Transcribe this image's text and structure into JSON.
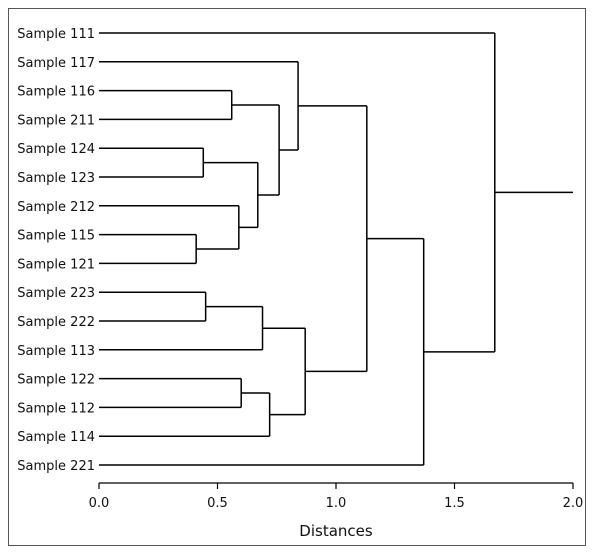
{
  "chart_data": {
    "type": "dendrogram",
    "xlabel": "Distances",
    "xlim": [
      0.0,
      2.0
    ],
    "xticks": [
      "0.0",
      "0.5",
      "1.0",
      "1.5",
      "2.0"
    ],
    "leaves": [
      "Sample 111",
      "Sample 117",
      "Sample 116",
      "Sample 211",
      "Sample 124",
      "Sample 123",
      "Sample 212",
      "Sample 115",
      "Sample 121",
      "Sample 223",
      "Sample 222",
      "Sample 113",
      "Sample 122",
      "Sample 112",
      "Sample 114",
      "Sample 221"
    ],
    "merges": [
      {
        "id": "C1",
        "left": "Sample 115",
        "right": "Sample 121",
        "distance": 0.41
      },
      {
        "id": "C2",
        "left": "Sample 124",
        "right": "Sample 123",
        "distance": 0.44
      },
      {
        "id": "C3",
        "left": "Sample 223",
        "right": "Sample 222",
        "distance": 0.45
      },
      {
        "id": "C4",
        "left": "Sample 116",
        "right": "Sample 211",
        "distance": 0.56
      },
      {
        "id": "C5",
        "left": "Sample 212",
        "right": "C1",
        "distance": 0.59
      },
      {
        "id": "C6",
        "left": "Sample 122",
        "right": "Sample 112",
        "distance": 0.6
      },
      {
        "id": "C7",
        "left": "C2",
        "right": "C5",
        "distance": 0.67
      },
      {
        "id": "C8",
        "left": "C3",
        "right": "Sample 113",
        "distance": 0.69
      },
      {
        "id": "C9",
        "left": "C6",
        "right": "Sample 114",
        "distance": 0.72
      },
      {
        "id": "C10",
        "left": "C4",
        "right": "C7",
        "distance": 0.76
      },
      {
        "id": "C11",
        "left": "Sample 117",
        "right": "C10",
        "distance": 0.84
      },
      {
        "id": "C12",
        "left": "C8",
        "right": "C9",
        "distance": 0.87
      },
      {
        "id": "C13",
        "left": "C11",
        "right": "C12",
        "distance": 1.13
      },
      {
        "id": "C14",
        "left": "C13",
        "right": "Sample 221",
        "distance": 1.37
      },
      {
        "id": "C15",
        "left": "Sample 111",
        "right": "C14",
        "distance": 1.67
      }
    ],
    "root_extends_to": 2.0
  }
}
